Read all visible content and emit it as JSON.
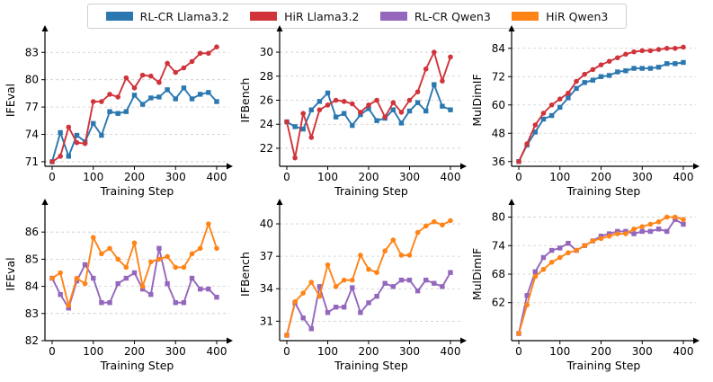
{
  "colors": {
    "rlcr_llama": "#2b78b0",
    "hir_llama": "#d0343a",
    "rlcr_qwen": "#9467bd",
    "hir_qwen": "#ff8417"
  },
  "legend": [
    {
      "name": "RL-CR Llama3.2",
      "color": "#2b78b0"
    },
    {
      "name": "HiR Llama3.2",
      "color": "#d0343a"
    },
    {
      "name": "RL-CR Qwen3",
      "color": "#9467bd"
    },
    {
      "name": "HiR Qwen3",
      "color": "#ff8417"
    }
  ],
  "chart_data": [
    {
      "type": "line",
      "xlabel": "Training Step",
      "ylabel": "IFEval",
      "xlim": [
        0,
        400
      ],
      "ylim": [
        70.5,
        85
      ],
      "xticks": [
        "0",
        "100",
        "200",
        "300",
        "400"
      ],
      "yticks": [
        "71",
        "74",
        "77",
        "80",
        "83"
      ],
      "ytick_values": [
        71,
        74,
        77,
        80,
        83
      ],
      "grid": "horizontal-dashed",
      "x": [
        0,
        20,
        40,
        60,
        80,
        100,
        120,
        140,
        160,
        180,
        200,
        220,
        240,
        260,
        280,
        300,
        320,
        340,
        360,
        380,
        400
      ],
      "series": [
        {
          "name": "RL-CR Llama3.2",
          "marker": "square",
          "values": [
            71.0,
            74.2,
            71.6,
            73.9,
            73.2,
            75.2,
            73.9,
            76.5,
            76.3,
            76.5,
            78.3,
            77.3,
            78.0,
            78.1,
            78.9,
            77.9,
            79.1,
            77.9,
            78.4,
            78.6,
            77.6
          ]
        },
        {
          "name": "HiR Llama3.2",
          "marker": "circle",
          "values": [
            71.0,
            71.6,
            74.8,
            73.1,
            73.0,
            77.6,
            77.6,
            78.4,
            78.1,
            80.2,
            79.1,
            80.5,
            80.4,
            79.7,
            81.8,
            80.8,
            81.3,
            82.0,
            82.9,
            82.9,
            83.6
          ]
        }
      ]
    },
    {
      "type": "line",
      "xlabel": "Training Step",
      "ylabel": "IFBench",
      "xlim": [
        0,
        400
      ],
      "ylim": [
        20.5,
        31.5
      ],
      "xticks": [
        "0",
        "100",
        "200",
        "300",
        "400"
      ],
      "yticks": [
        "22",
        "24",
        "26",
        "28",
        "30"
      ],
      "ytick_values": [
        22,
        24,
        26,
        28,
        30
      ],
      "grid": "horizontal-dashed",
      "x": [
        0,
        20,
        40,
        60,
        80,
        100,
        120,
        140,
        160,
        180,
        200,
        220,
        240,
        260,
        280,
        300,
        320,
        340,
        360,
        380,
        400
      ],
      "series": [
        {
          "name": "RL-CR Llama3.2",
          "marker": "square",
          "values": [
            24.2,
            23.8,
            23.6,
            25.2,
            25.9,
            26.6,
            24.6,
            24.9,
            23.9,
            24.8,
            25.3,
            24.3,
            24.5,
            25.2,
            24.1,
            25.1,
            25.8,
            25.1,
            27.3,
            25.5,
            25.2
          ]
        },
        {
          "name": "HiR Llama3.2",
          "marker": "circle",
          "values": [
            24.2,
            21.2,
            24.9,
            22.9,
            25.2,
            25.6,
            26.0,
            25.9,
            25.7,
            25.0,
            25.6,
            26.0,
            24.6,
            25.8,
            25.0,
            26.0,
            26.7,
            28.6,
            30.0,
            27.6,
            29.6
          ]
        }
      ]
    },
    {
      "type": "line",
      "xlabel": "Training Step",
      "ylabel": "MulDimIF",
      "xlim": [
        0,
        400
      ],
      "ylim": [
        34,
        90
      ],
      "xticks": [
        "0",
        "100",
        "200",
        "300",
        "400"
      ],
      "yticks": [
        "36",
        "48",
        "60",
        "72",
        "84"
      ],
      "ytick_values": [
        36,
        48,
        60,
        72,
        84
      ],
      "grid": "horizontal-dashed",
      "x": [
        0,
        20,
        40,
        60,
        80,
        100,
        120,
        140,
        160,
        180,
        200,
        220,
        240,
        260,
        280,
        300,
        320,
        340,
        360,
        380,
        400
      ],
      "series": [
        {
          "name": "RL-CR Llama3.2",
          "marker": "square",
          "values": [
            36.0,
            43.0,
            48.5,
            54.0,
            55.5,
            59.0,
            63.0,
            67.0,
            69.5,
            70.5,
            72.0,
            72.5,
            74.0,
            74.5,
            75.5,
            75.5,
            75.5,
            76.0,
            77.5,
            77.5,
            78.0
          ]
        },
        {
          "name": "HiR Llama3.2",
          "marker": "circle",
          "values": [
            36.0,
            43.5,
            51.5,
            56.5,
            60.0,
            62.5,
            65.0,
            70.0,
            73.0,
            75.0,
            77.0,
            78.5,
            80.0,
            81.5,
            82.5,
            83.0,
            83.0,
            83.5,
            84.0,
            84.0,
            84.5
          ]
        }
      ]
    },
    {
      "type": "line",
      "xlabel": "Training Step",
      "ylabel": "IFEval",
      "xlim": [
        0,
        400
      ],
      "ylim": [
        82,
        86.9
      ],
      "xticks": [
        "0",
        "100",
        "200",
        "300",
        "400"
      ],
      "yticks": [
        "82",
        "83",
        "84",
        "85",
        "86"
      ],
      "ytick_values": [
        82,
        83,
        84,
        85,
        86
      ],
      "grid": "horizontal-dashed",
      "x": [
        0,
        20,
        40,
        60,
        80,
        100,
        120,
        140,
        160,
        180,
        200,
        220,
        240,
        260,
        280,
        300,
        320,
        340,
        360,
        380,
        400
      ],
      "series": [
        {
          "name": "RL-CR Qwen3",
          "marker": "square",
          "values": [
            84.3,
            83.7,
            83.2,
            84.2,
            84.8,
            84.3,
            83.4,
            83.4,
            84.1,
            84.3,
            84.5,
            83.9,
            83.7,
            85.4,
            84.1,
            83.4,
            83.4,
            84.3,
            83.9,
            83.9,
            83.6
          ]
        },
        {
          "name": "HiR Qwen3",
          "marker": "circle",
          "values": [
            84.3,
            84.5,
            83.3,
            84.3,
            84.1,
            85.8,
            85.2,
            85.4,
            85.0,
            84.7,
            85.6,
            84.0,
            84.9,
            85.0,
            85.1,
            84.7,
            84.7,
            85.2,
            85.4,
            86.3,
            85.4
          ]
        }
      ]
    },
    {
      "type": "line",
      "xlabel": "Training Step",
      "ylabel": "IFBench",
      "xlim": [
        0,
        400
      ],
      "ylim": [
        29.2,
        41.5
      ],
      "xticks": [
        "0",
        "100",
        "200",
        "300",
        "400"
      ],
      "yticks": [
        "31",
        "34",
        "37",
        "40"
      ],
      "ytick_values": [
        31,
        34,
        37,
        40
      ],
      "grid": "horizontal-dashed",
      "x": [
        0,
        20,
        40,
        60,
        80,
        100,
        120,
        140,
        160,
        180,
        200,
        220,
        240,
        260,
        280,
        300,
        320,
        340,
        360,
        380,
        400
      ],
      "series": [
        {
          "name": "RL-CR Qwen3",
          "marker": "square",
          "values": [
            29.7,
            32.7,
            31.3,
            30.3,
            34.2,
            31.8,
            32.3,
            32.3,
            34.1,
            31.8,
            32.7,
            33.3,
            34.5,
            34.2,
            34.8,
            34.8,
            33.8,
            34.8,
            34.5,
            34.2,
            35.5
          ]
        },
        {
          "name": "HiR Qwen3",
          "marker": "circle",
          "values": [
            29.7,
            32.8,
            33.6,
            34.6,
            33.3,
            36.2,
            34.2,
            34.8,
            34.8,
            37.1,
            35.8,
            35.5,
            37.5,
            38.5,
            37.1,
            37.1,
            39.2,
            39.8,
            40.2,
            39.9,
            40.3
          ]
        }
      ]
    },
    {
      "type": "line",
      "xlabel": "Training Step",
      "ylabel": "MulDimIF",
      "xlim": [
        0,
        400
      ],
      "ylim": [
        54,
        82
      ],
      "xticks": [
        "0",
        "100",
        "200",
        "300",
        "400"
      ],
      "yticks": [
        "62",
        "68",
        "74",
        "80"
      ],
      "ytick_values": [
        62,
        68,
        74,
        80
      ],
      "grid": "horizontal-dashed",
      "x": [
        0,
        20,
        40,
        60,
        80,
        100,
        120,
        140,
        160,
        180,
        200,
        220,
        240,
        260,
        280,
        300,
        320,
        340,
        360,
        380,
        400
      ],
      "series": [
        {
          "name": "RL-CR Qwen3",
          "marker": "square",
          "values": [
            55.5,
            63.5,
            68.5,
            71.5,
            73.0,
            73.5,
            74.5,
            73.0,
            74.0,
            75.0,
            76.0,
            76.5,
            77.0,
            77.0,
            76.5,
            77.0,
            77.0,
            77.5,
            77.0,
            79.5,
            78.5
          ]
        },
        {
          "name": "HiR Qwen3",
          "marker": "circle",
          "values": [
            55.5,
            61.5,
            67.5,
            69.0,
            70.5,
            71.5,
            72.5,
            73.0,
            74.0,
            75.0,
            75.5,
            76.0,
            76.5,
            76.5,
            77.5,
            78.0,
            78.5,
            79.0,
            80.0,
            80.0,
            79.5
          ]
        }
      ]
    }
  ]
}
